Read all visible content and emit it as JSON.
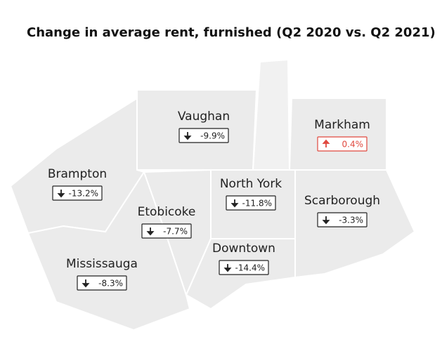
{
  "title": "Change in average rent, furnished (Q2 2020 vs. Q2 2021)",
  "regions": [
    {
      "name": "Vaughan",
      "change": "-9.9%"
    },
    {
      "name": "Markham",
      "change": "0.4%"
    },
    {
      "name": "Brampton",
      "change": "-13.2%"
    },
    {
      "name": "North York",
      "change": "-11.8%"
    },
    {
      "name": "Scarborough",
      "change": "-3.3%"
    },
    {
      "name": "Etobicoke",
      "change": "-7.7%"
    },
    {
      "name": "Downtown",
      "change": "-14.4%"
    },
    {
      "name": "Mississauga",
      "change": "-8.3%"
    }
  ]
}
